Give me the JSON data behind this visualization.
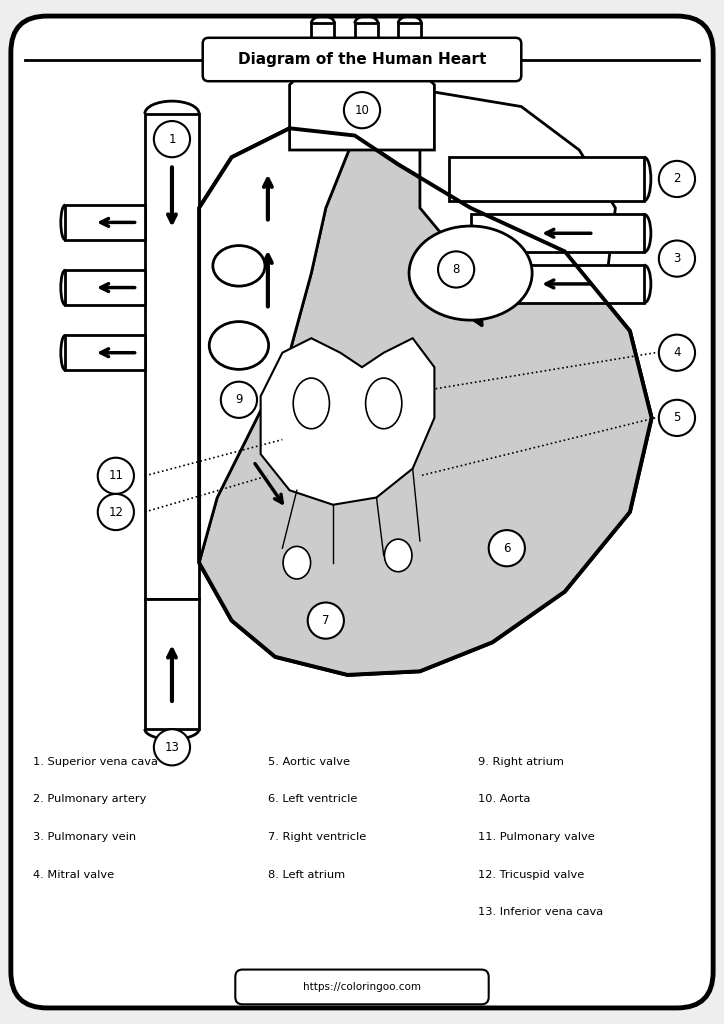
{
  "title": "Diagram of the Human Heart",
  "website": "https://coloringoo.com",
  "bg_color": "#eeeeee",
  "legend": [
    [
      "1. Superior vena cava",
      "5. Aortic valve",
      "9. Right atrium"
    ],
    [
      "2. Pulmonary artery",
      "6. Left ventricle",
      "10. Aorta"
    ],
    [
      "3. Pulmonary vein",
      "7. Right ventricle",
      "11. Pulmonary valve"
    ],
    [
      "4. Mitral valve",
      "8. Left atrium",
      "12. Tricuspid valve"
    ],
    [
      "",
      "",
      "13. Inferior vena cava"
    ]
  ]
}
